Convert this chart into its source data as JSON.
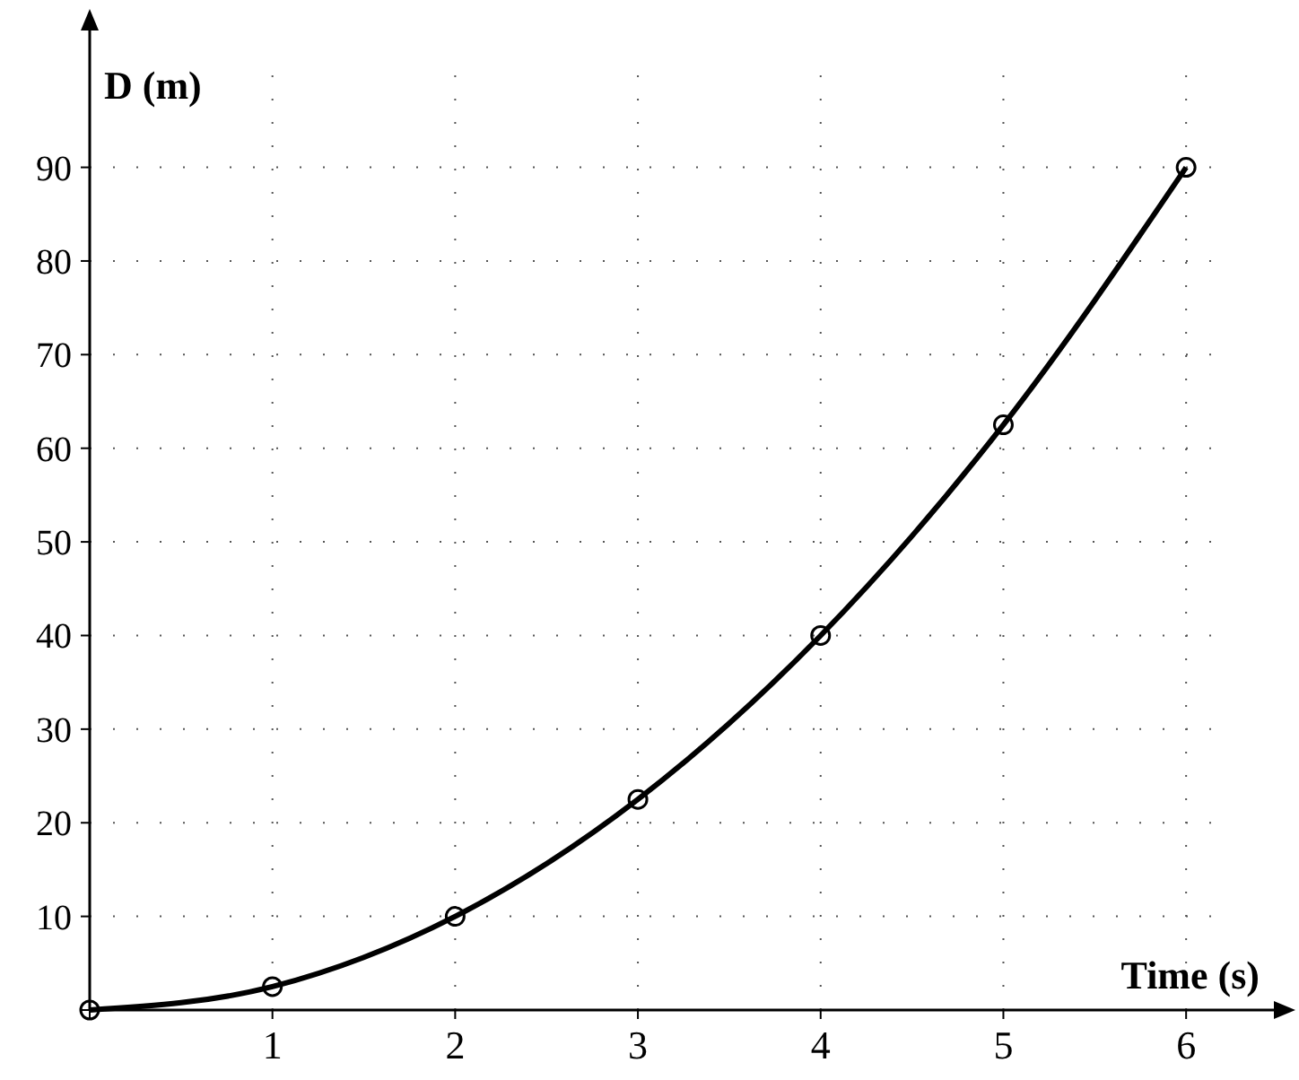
{
  "chart_data": {
    "type": "line",
    "xlabel": "Time (s)",
    "ylabel": "D (m)",
    "x": [
      0,
      1,
      2,
      3,
      4,
      5,
      6
    ],
    "series": [
      {
        "color": "#000000",
        "values": [
          0,
          2.5,
          10,
          22.5,
          40,
          62.5,
          90
        ]
      }
    ],
    "xlim": [
      0,
      6.5
    ],
    "ylim": [
      0,
      105
    ],
    "xticks": [
      {
        "value": 0,
        "label": null
      },
      1,
      2,
      3,
      4,
      5,
      6
    ],
    "yticks": [
      {
        "value": 0,
        "label": null
      },
      10,
      20,
      30,
      40,
      50,
      60,
      70,
      80,
      90
    ],
    "grid": true,
    "marker": "circle",
    "line_style": "solid"
  }
}
